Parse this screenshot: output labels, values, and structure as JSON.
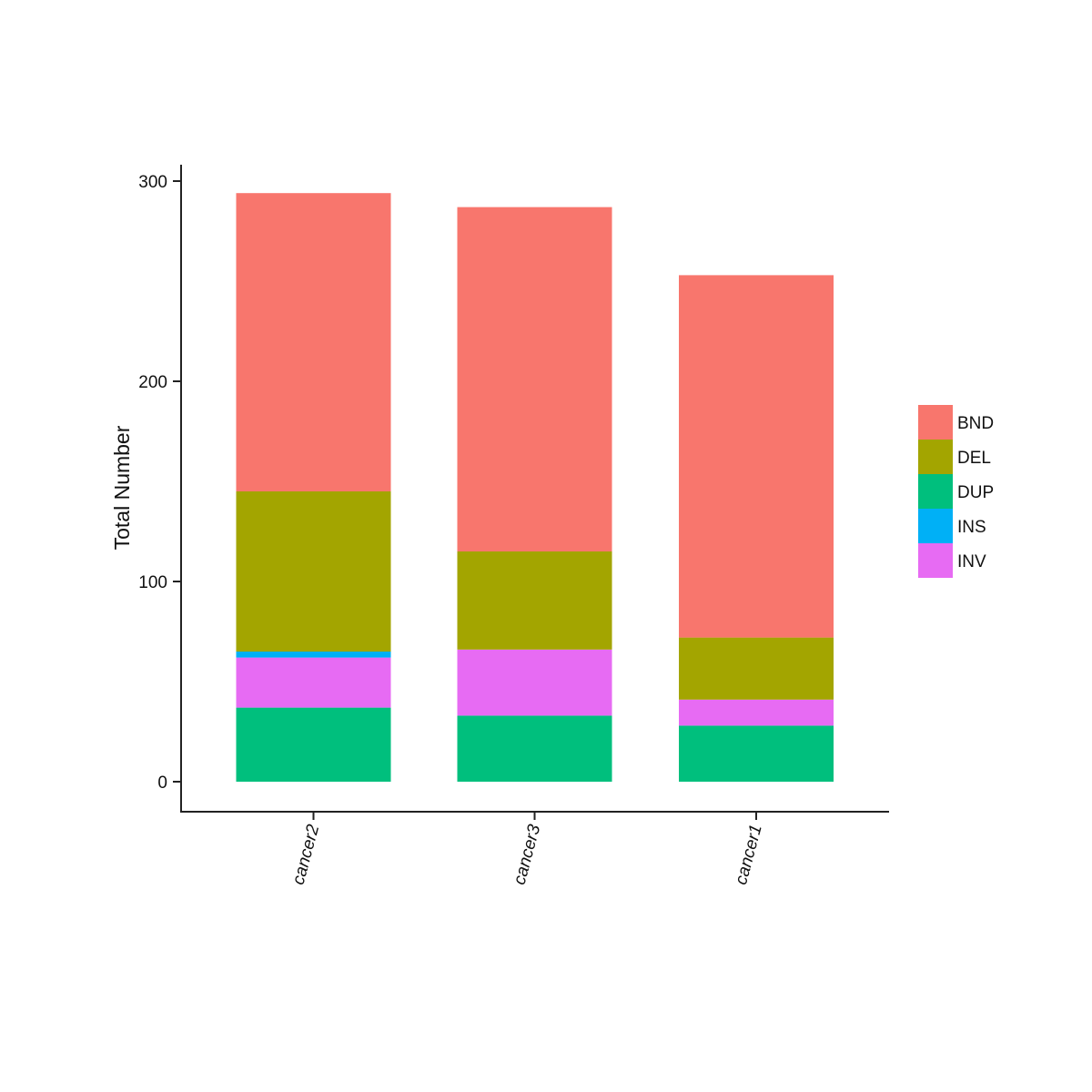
{
  "chart_data": {
    "type": "bar",
    "stacked": true,
    "categories": [
      "cancer2",
      "cancer3",
      "cancer1"
    ],
    "series": [
      {
        "name": "DUP",
        "color": "#00BF7D",
        "values": [
          37,
          33,
          28
        ]
      },
      {
        "name": "INV",
        "color": "#E76BF3",
        "values": [
          25,
          33,
          13
        ]
      },
      {
        "name": "INS",
        "color": "#00B0F6",
        "values": [
          3,
          0,
          0
        ]
      },
      {
        "name": "DEL",
        "color": "#A3A500",
        "values": [
          80,
          49,
          31
        ]
      },
      {
        "name": "BND",
        "color": "#F8766D",
        "values": [
          149,
          172,
          181
        ]
      }
    ],
    "legend": {
      "position": "right",
      "order": [
        "BND",
        "DEL",
        "DUP",
        "INS",
        "INV"
      ]
    },
    "title": "",
    "xlabel": "",
    "ylabel": "Total Number",
    "ylim": [
      0,
      300
    ],
    "yticks": [
      0,
      100,
      200,
      300
    ],
    "grid": false
  }
}
